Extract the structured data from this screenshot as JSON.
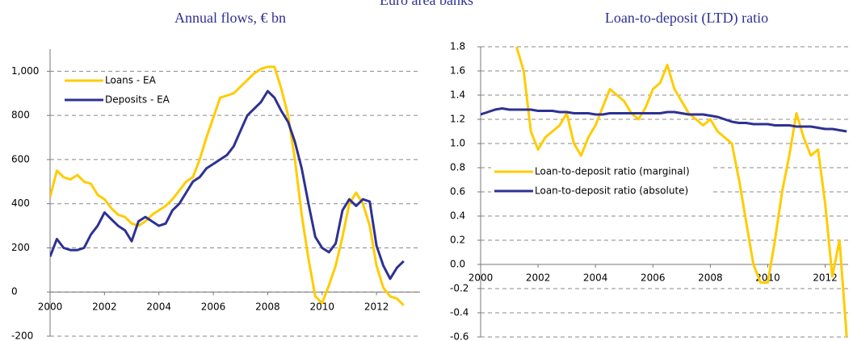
{
  "title": "Euro area banks",
  "chart_data": [
    {
      "type": "line",
      "title": "Annual flows,  € bn",
      "x": [
        2000,
        2000.25,
        2000.5,
        2000.75,
        2001,
        2001.25,
        2001.5,
        2001.75,
        2002,
        2002.25,
        2002.5,
        2002.75,
        2003,
        2003.25,
        2003.5,
        2003.75,
        2004,
        2004.25,
        2004.5,
        2004.75,
        2005,
        2005.25,
        2005.5,
        2005.75,
        2006,
        2006.25,
        2006.5,
        2006.75,
        2007,
        2007.25,
        2007.5,
        2007.75,
        2008,
        2008.25,
        2008.5,
        2008.75,
        2009,
        2009.25,
        2009.5,
        2009.75,
        2010,
        2010.25,
        2010.5,
        2010.75,
        2011,
        2011.25,
        2011.5,
        2011.75,
        2012,
        2012.25,
        2012.5,
        2012.75,
        2013
      ],
      "series": [
        {
          "name": "Loans - EA",
          "color": "#ffcc00",
          "values": [
            430,
            550,
            520,
            510,
            530,
            500,
            490,
            440,
            420,
            380,
            350,
            340,
            310,
            300,
            320,
            350,
            370,
            390,
            420,
            460,
            500,
            520,
            600,
            700,
            790,
            880,
            890,
            900,
            930,
            960,
            990,
            1010,
            1020,
            1020,
            920,
            800,
            600,
            350,
            150,
            -20,
            -50,
            30,
            120,
            250,
            400,
            450,
            400,
            300,
            120,
            20,
            -20,
            -30,
            -60
          ]
        },
        {
          "name": "Deposits - EA",
          "color": "#2e3192",
          "values": [
            160,
            240,
            200,
            190,
            190,
            200,
            260,
            300,
            360,
            330,
            300,
            280,
            230,
            320,
            340,
            320,
            300,
            310,
            370,
            400,
            450,
            500,
            520,
            560,
            580,
            600,
            620,
            660,
            730,
            800,
            830,
            860,
            910,
            880,
            820,
            770,
            680,
            560,
            400,
            250,
            200,
            180,
            220,
            370,
            420,
            390,
            420,
            410,
            210,
            120,
            60,
            110,
            140
          ]
        }
      ],
      "xlim": [
        2000,
        2013.6
      ],
      "ylim": [
        -200,
        1100
      ],
      "xticks": [
        2000,
        2002,
        2004,
        2006,
        2008,
        2010,
        2012
      ],
      "yticks": [
        -200,
        0,
        200,
        400,
        600,
        800,
        {
          "value": 1000,
          "label": "1,000"
        }
      ],
      "grid": true,
      "legend": "upper left"
    },
    {
      "type": "line",
      "title": "Loan-to-deposit (LTD) ratio",
      "x": [
        2000,
        2000.25,
        2000.5,
        2000.75,
        2001,
        2001.25,
        2001.5,
        2001.75,
        2002,
        2002.25,
        2002.5,
        2002.75,
        2003,
        2003.25,
        2003.5,
        2003.75,
        2004,
        2004.25,
        2004.5,
        2004.75,
        2005,
        2005.25,
        2005.5,
        2005.75,
        2006,
        2006.25,
        2006.5,
        2006.75,
        2007,
        2007.25,
        2007.5,
        2007.75,
        2008,
        2008.25,
        2008.5,
        2008.75,
        2009,
        2009.25,
        2009.5,
        2009.75,
        2010,
        2010.25,
        2010.5,
        2010.75,
        2011,
        2011.25,
        2011.5,
        2011.75,
        2012,
        2012.25,
        2012.5,
        2012.75
      ],
      "series": [
        {
          "name": "Loan-to-deposit ratio (marginal)",
          "color": "#ffcc00",
          "values": [
            null,
            null,
            null,
            null,
            null,
            1.8,
            1.6,
            1.1,
            0.95,
            1.05,
            1.1,
            1.15,
            1.25,
            1.0,
            0.9,
            1.05,
            1.15,
            1.3,
            1.45,
            1.4,
            1.35,
            1.25,
            1.2,
            1.3,
            1.45,
            1.5,
            1.65,
            1.45,
            1.35,
            1.25,
            1.2,
            1.15,
            1.2,
            1.1,
            1.05,
            1.0,
            0.7,
            0.35,
            0.0,
            -0.15,
            -0.15,
            0.2,
            0.6,
            0.9,
            1.25,
            1.05,
            0.9,
            0.95,
            0.5,
            -0.1,
            0.2,
            -0.6
          ]
        },
        {
          "name": "Loan-to-deposit ratio (absolute)",
          "color": "#2e3192",
          "values": [
            1.24,
            1.26,
            1.28,
            1.29,
            1.28,
            1.28,
            1.28,
            1.28,
            1.27,
            1.27,
            1.27,
            1.26,
            1.26,
            1.25,
            1.25,
            1.25,
            1.24,
            1.24,
            1.25,
            1.25,
            1.25,
            1.25,
            1.25,
            1.25,
            1.25,
            1.25,
            1.26,
            1.26,
            1.25,
            1.24,
            1.24,
            1.24,
            1.23,
            1.22,
            1.2,
            1.18,
            1.17,
            1.17,
            1.16,
            1.16,
            1.16,
            1.15,
            1.15,
            1.15,
            1.14,
            1.14,
            1.14,
            1.13,
            1.12,
            1.12,
            1.11,
            1.1
          ]
        }
      ],
      "xlim": [
        2000,
        2012.8
      ],
      "ylim": [
        -0.6,
        1.8
      ],
      "xticks": [
        2000,
        2002,
        2004,
        2006,
        2008,
        2010,
        2012
      ],
      "yticks": [
        -0.6,
        -0.4,
        -0.2,
        {
          "value": 0,
          "label": "0.0"
        },
        0.2,
        0.4,
        0.6,
        0.8,
        {
          "value": 1,
          "label": "1.0"
        },
        1.2,
        1.4,
        1.6,
        1.8
      ],
      "grid": true,
      "legend": "center left"
    }
  ]
}
